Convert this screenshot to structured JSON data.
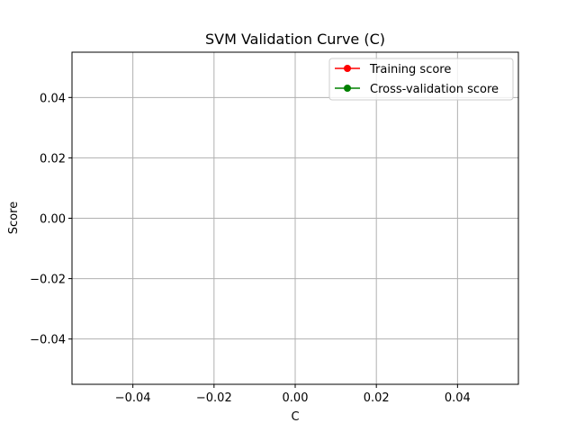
{
  "chart_data": {
    "type": "line",
    "title": "SVM Validation Curve (C)",
    "xlabel": "C",
    "ylabel": "Score",
    "xlim": [
      -0.055,
      0.055
    ],
    "ylim": [
      -0.055,
      0.055
    ],
    "xticks": [
      -0.04,
      -0.02,
      0.0,
      0.02,
      0.04
    ],
    "yticks": [
      -0.04,
      -0.02,
      0.0,
      0.02,
      0.04
    ],
    "xtick_labels": [
      "−0.04",
      "−0.02",
      "0.00",
      "0.02",
      "0.04"
    ],
    "ytick_labels": [
      "−0.04",
      "−0.02",
      "0.00",
      "0.02",
      "0.04"
    ],
    "grid": true,
    "legend_position": "top-right",
    "series": [
      {
        "name": "Training score",
        "color": "#ff0000",
        "marker": "circle",
        "x": [],
        "y": []
      },
      {
        "name": "Cross-validation score",
        "color": "#008000",
        "marker": "circle",
        "x": [],
        "y": []
      }
    ]
  }
}
